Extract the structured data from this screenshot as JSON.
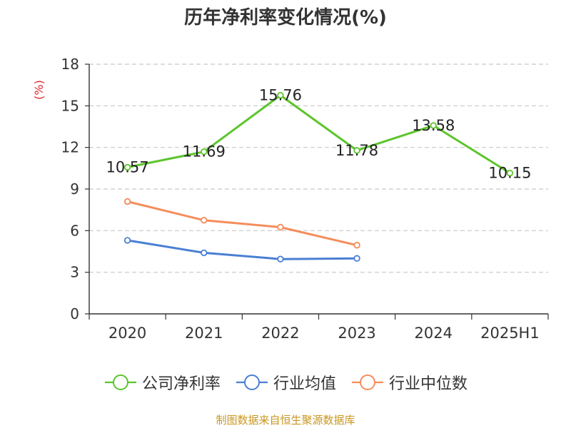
{
  "title": "历年净利率变化情况(%)",
  "y_unit": "(%)",
  "footer": "制图数据来自恒生聚源数据库",
  "colors": {
    "company": "#5cc52c",
    "industry_avg": "#4a7fd4",
    "industry_median": "#f58d5c",
    "axis": "#333333",
    "grid": "#c8c8c8",
    "unit": "#e0262a",
    "footer": "#c8971f"
  },
  "chart_data": {
    "type": "line",
    "categories": [
      "2020",
      "2021",
      "2022",
      "2023",
      "2024",
      "2025H1"
    ],
    "ylim": [
      0,
      18
    ],
    "yticks": [
      0,
      3,
      6,
      9,
      12,
      15,
      18
    ],
    "grid": true,
    "legend_position": "bottom",
    "series": [
      {
        "name": "公司净利率",
        "color": "#5cc52c",
        "values": [
          10.57,
          11.69,
          15.76,
          11.78,
          13.58,
          10.15
        ],
        "labels": [
          "10.57",
          "11.69",
          "15.76",
          "11.78",
          "13.58",
          "10.15"
        ],
        "show_labels": true
      },
      {
        "name": "行业均值",
        "color": "#4a7fd4",
        "values": [
          5.3,
          4.4,
          3.95,
          4.0,
          null,
          null
        ],
        "show_labels": false
      },
      {
        "name": "行业中位数",
        "color": "#f58d5c",
        "values": [
          8.1,
          6.75,
          6.25,
          4.95,
          null,
          null
        ],
        "show_labels": false
      }
    ]
  }
}
